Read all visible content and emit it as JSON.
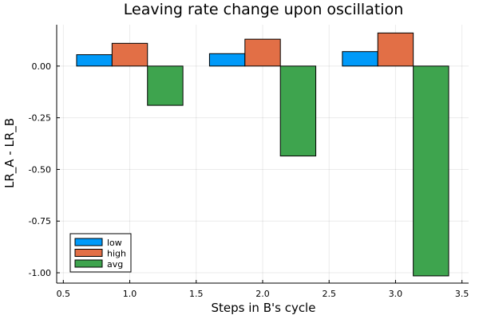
{
  "chart_data": {
    "type": "bar",
    "title": "Leaving rate change upon oscillation",
    "xlabel": "Steps in B's cycle",
    "ylabel": "LR_A - LR_B",
    "categories": [
      1,
      2,
      3
    ],
    "series": [
      {
        "name": "low",
        "values": [
          0.055,
          0.06,
          0.07
        ],
        "color": "#009af9"
      },
      {
        "name": "high",
        "values": [
          0.11,
          0.13,
          0.16
        ],
        "color": "#e26f46"
      },
      {
        "name": "avg",
        "values": [
          -0.19,
          -0.435,
          -1.015
        ],
        "color": "#3ea44e"
      }
    ],
    "xlim": [
      0.45,
      3.55
    ],
    "ylim": [
      -1.05,
      0.2
    ],
    "x_ticks": [
      0.5,
      1.0,
      1.5,
      2.0,
      2.5,
      3.0,
      3.5
    ],
    "x_tick_labels": [
      "0.5",
      "1.0",
      "1.5",
      "2.0",
      "2.5",
      "3.0",
      "3.5"
    ],
    "y_ticks": [
      0.0,
      -0.25,
      -0.5,
      -0.75,
      -1.0
    ],
    "y_tick_labels": [
      "0.00",
      "-0.25",
      "-0.50",
      "-0.75",
      "-1.00"
    ],
    "grid": true,
    "legend_position": "bottom-left"
  }
}
